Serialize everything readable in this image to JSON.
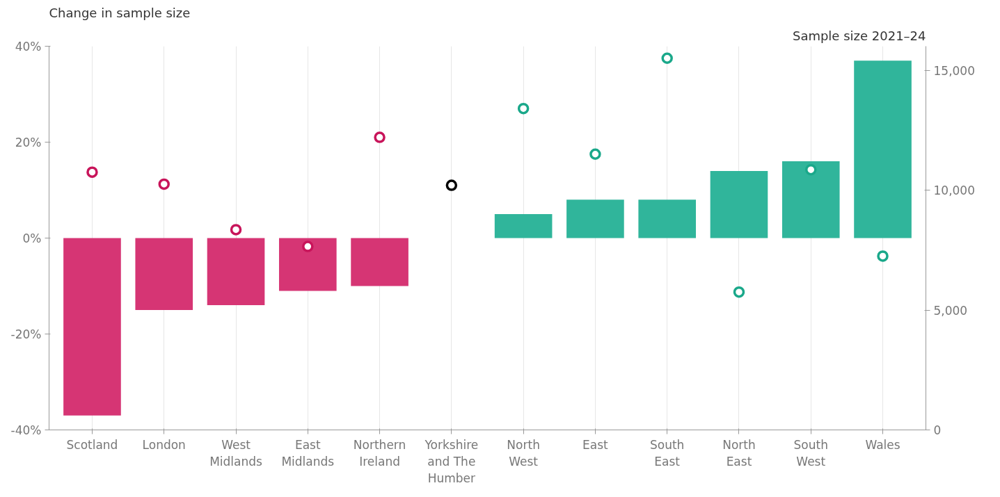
{
  "chart_data": {
    "type": "bar",
    "ylabel": "Change in sample size",
    "y2label": "Sample size 2021–24",
    "categories": [
      "Scotland",
      "London",
      "West\nMidlands",
      "East\nMidlands",
      "Northern\nIreland",
      "Yorkshire\nand The\nHumber",
      "North\nWest",
      "East",
      "South\nEast",
      "North\nEast",
      "South\nWest",
      "Wales"
    ],
    "series": [
      {
        "type": "bar",
        "colors": [
          "#d63574",
          "#d63574",
          "#d63574",
          "#d63574",
          "#d63574",
          "#d63574",
          "#30b59b",
          "#30b59b",
          "#30b59b",
          "#30b59b",
          "#30b59b",
          "#30b59b"
        ],
        "values": [
          -37,
          -15,
          -14,
          -11,
          -10,
          null,
          5,
          8,
          8,
          14,
          16,
          37
        ]
      },
      {
        "type": "scatter",
        "axis": "y2",
        "marker": "circle",
        "colors": [
          "#c8145a",
          "#c8145a",
          "#c8145a",
          "#c8145a",
          "#c8145a",
          "#000000",
          "#1aa88a",
          "#1aa88a",
          "#1aa88a",
          "#1aa88a",
          "#1aa88a",
          "#1aa88a"
        ],
        "values": [
          10750,
          10250,
          8350,
          7650,
          12200,
          10200,
          13400,
          11500,
          15500,
          5750,
          10850,
          7250
        ]
      }
    ],
    "ylim": [
      -40,
      40
    ],
    "yticks": [
      {
        "value": -40,
        "label": "-40%"
      },
      {
        "value": -20,
        "label": "-20%"
      },
      {
        "value": 0,
        "label": "0%"
      },
      {
        "value": 20,
        "label": "20%"
      },
      {
        "value": 40,
        "label": "40%"
      }
    ],
    "y2lim": [
      0,
      16000
    ],
    "y2ticks": [
      0,
      {
        "value": 5000,
        "label": "5,000"
      },
      {
        "value": 10000,
        "label": "10,000"
      },
      {
        "value": 15000,
        "label": "15,000"
      }
    ],
    "grid": "x"
  }
}
